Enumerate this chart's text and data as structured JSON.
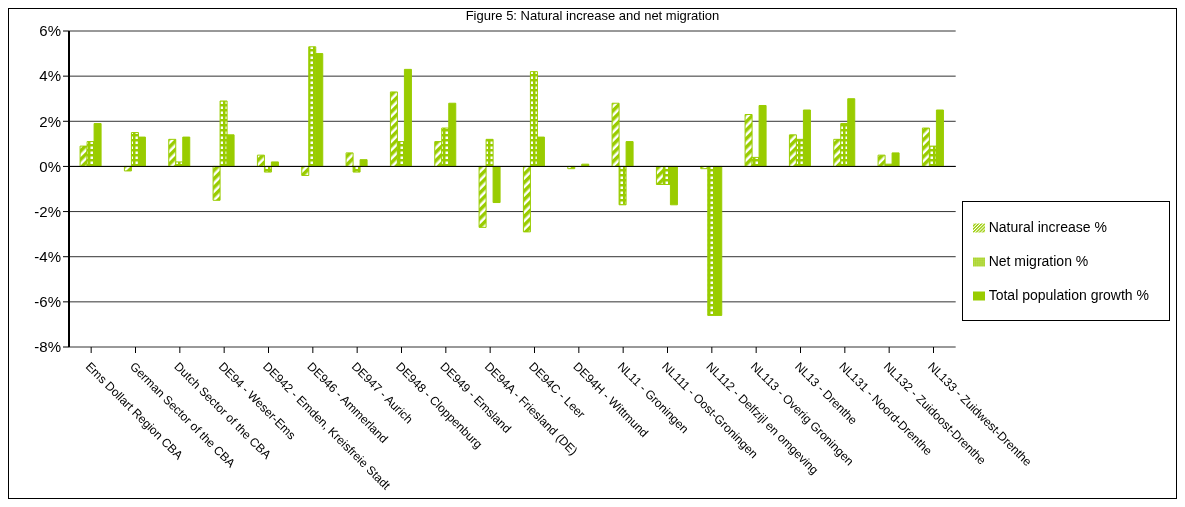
{
  "chart_data": {
    "type": "bar",
    "title": "Figure 5: Natural increase and net migration",
    "categories": [
      "Ems Dollart Region CBA",
      "German Sector of the CBA",
      "Dutch Sector of the CBA",
      "DE94 - Weser-Ems",
      "DE942 - Emden, Kreisfreie Stadt",
      "DE946 - Ammerland",
      "DE947 - Aurich",
      "DE948 - Cloppenburg",
      "DE949 - Emsland",
      "DE94A - Friesland (DE)",
      "DE94C - Leer",
      "DE94H - Wittmund",
      "NL11 - Groningen",
      "NL111 - Oost-Groningen",
      "NL112 - Delfzijl en omgeving",
      "NL113 - Overig Groningen",
      "NL13 - Drenthe",
      "NL131 - Noord-Drenthe",
      "NL132 - Zuidoost-Drenthe",
      "NL133 - Zuidwest-Drenthe"
    ],
    "series": [
      {
        "name": "Natural increase %",
        "color": "#99cc00",
        "values": [
          0.9,
          -0.2,
          1.2,
          -1.5,
          0.5,
          -0.4,
          0.6,
          3.3,
          1.1,
          -2.7,
          -2.9,
          -0.1,
          2.8,
          -0.8,
          -0.1,
          2.3,
          1.4,
          1.2,
          0.5,
          1.7
        ]
      },
      {
        "name": "Net migration %",
        "color": "#99cc00",
        "values": [
          1.1,
          1.5,
          0.2,
          2.9,
          -0.25,
          5.3,
          -0.25,
          1.1,
          1.7,
          1.2,
          4.2,
          null,
          -1.7,
          -0.8,
          -6.6,
          0.4,
          1.2,
          1.9,
          0.1,
          0.9
        ]
      },
      {
        "name": "Total population growth %",
        "color": "#99cc00",
        "values": [
          1.9,
          1.3,
          1.3,
          1.4,
          0.2,
          5.0,
          0.3,
          4.3,
          2.8,
          -1.6,
          1.3,
          0.1,
          1.1,
          -1.7,
          -6.6,
          2.7,
          2.5,
          3.0,
          0.6,
          2.5
        ]
      }
    ],
    "ylim": [
      -8,
      6
    ],
    "yticks": [
      {
        "value": -8,
        "label": "-8%"
      },
      {
        "value": -6,
        "label": "-6%"
      },
      {
        "value": -4,
        "label": "-4%"
      },
      {
        "value": -2,
        "label": "-2%"
      },
      {
        "value": 0,
        "label": "0%"
      },
      {
        "value": 2,
        "label": "2%"
      },
      {
        "value": 4,
        "label": "4%"
      },
      {
        "value": 6,
        "label": "6%"
      }
    ],
    "grid": "y",
    "legend": "right"
  }
}
